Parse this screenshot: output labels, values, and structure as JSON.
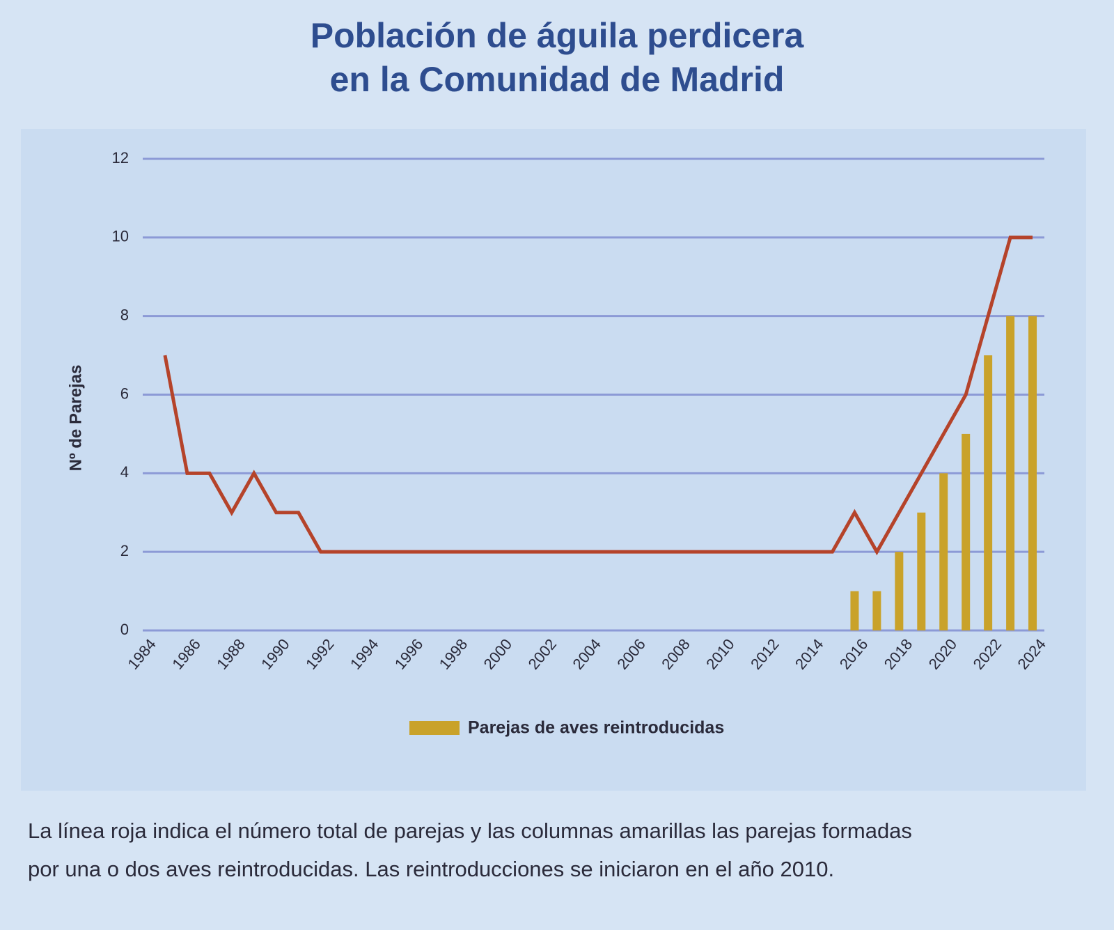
{
  "chart_data": {
    "type": "combo",
    "title": [
      "Población de águila perdicera",
      "en la Comunidad de Madrid"
    ],
    "y_label": "Nº de Parejas",
    "caption": [
      "La línea roja indica el número total de parejas y las columnas amarillas las parejas formadas",
      "por una o dos aves reintroducidas. Las reintroducciones se iniciaron en el año 2010."
    ],
    "xlim": [
      1984,
      2025
    ],
    "xticks": [
      1984,
      1986,
      1988,
      1990,
      1992,
      1994,
      1996,
      1998,
      2000,
      2002,
      2004,
      2006,
      2008,
      2010,
      2012,
      2014,
      2016,
      2018,
      2020,
      2022,
      2024
    ],
    "ylim": [
      0,
      12
    ],
    "yticks": [
      0,
      2,
      4,
      6,
      8,
      10,
      12
    ],
    "grid": true,
    "series": [
      {
        "type": "line",
        "color": "#b5432a",
        "x": [
          1985,
          1986,
          1987,
          1988,
          1989,
          1990,
          1991,
          1992,
          1993,
          1994,
          1995,
          1996,
          1997,
          1998,
          1999,
          2000,
          2001,
          2002,
          2003,
          2004,
          2005,
          2006,
          2007,
          2008,
          2009,
          2010,
          2011,
          2012,
          2013,
          2014,
          2015,
          2016,
          2017,
          2018,
          2019,
          2020,
          2021,
          2022,
          2023,
          2024
        ],
        "values": [
          7,
          4,
          4,
          3,
          4,
          3,
          3,
          2,
          2,
          2,
          2,
          2,
          2,
          2,
          2,
          2,
          2,
          2,
          2,
          2,
          2,
          2,
          2,
          2,
          2,
          2,
          2,
          2,
          2,
          2,
          2,
          3,
          2,
          3,
          4,
          5,
          6,
          8,
          10,
          10
        ]
      },
      {
        "type": "bar",
        "name": "Parejas de aves reintroducidas",
        "color": "#c9a22a",
        "x": [
          2016,
          2017,
          2018,
          2019,
          2020,
          2021,
          2022,
          2023,
          2024
        ],
        "values": [
          1,
          1,
          2,
          3,
          4,
          5,
          7,
          8,
          8
        ]
      }
    ]
  }
}
